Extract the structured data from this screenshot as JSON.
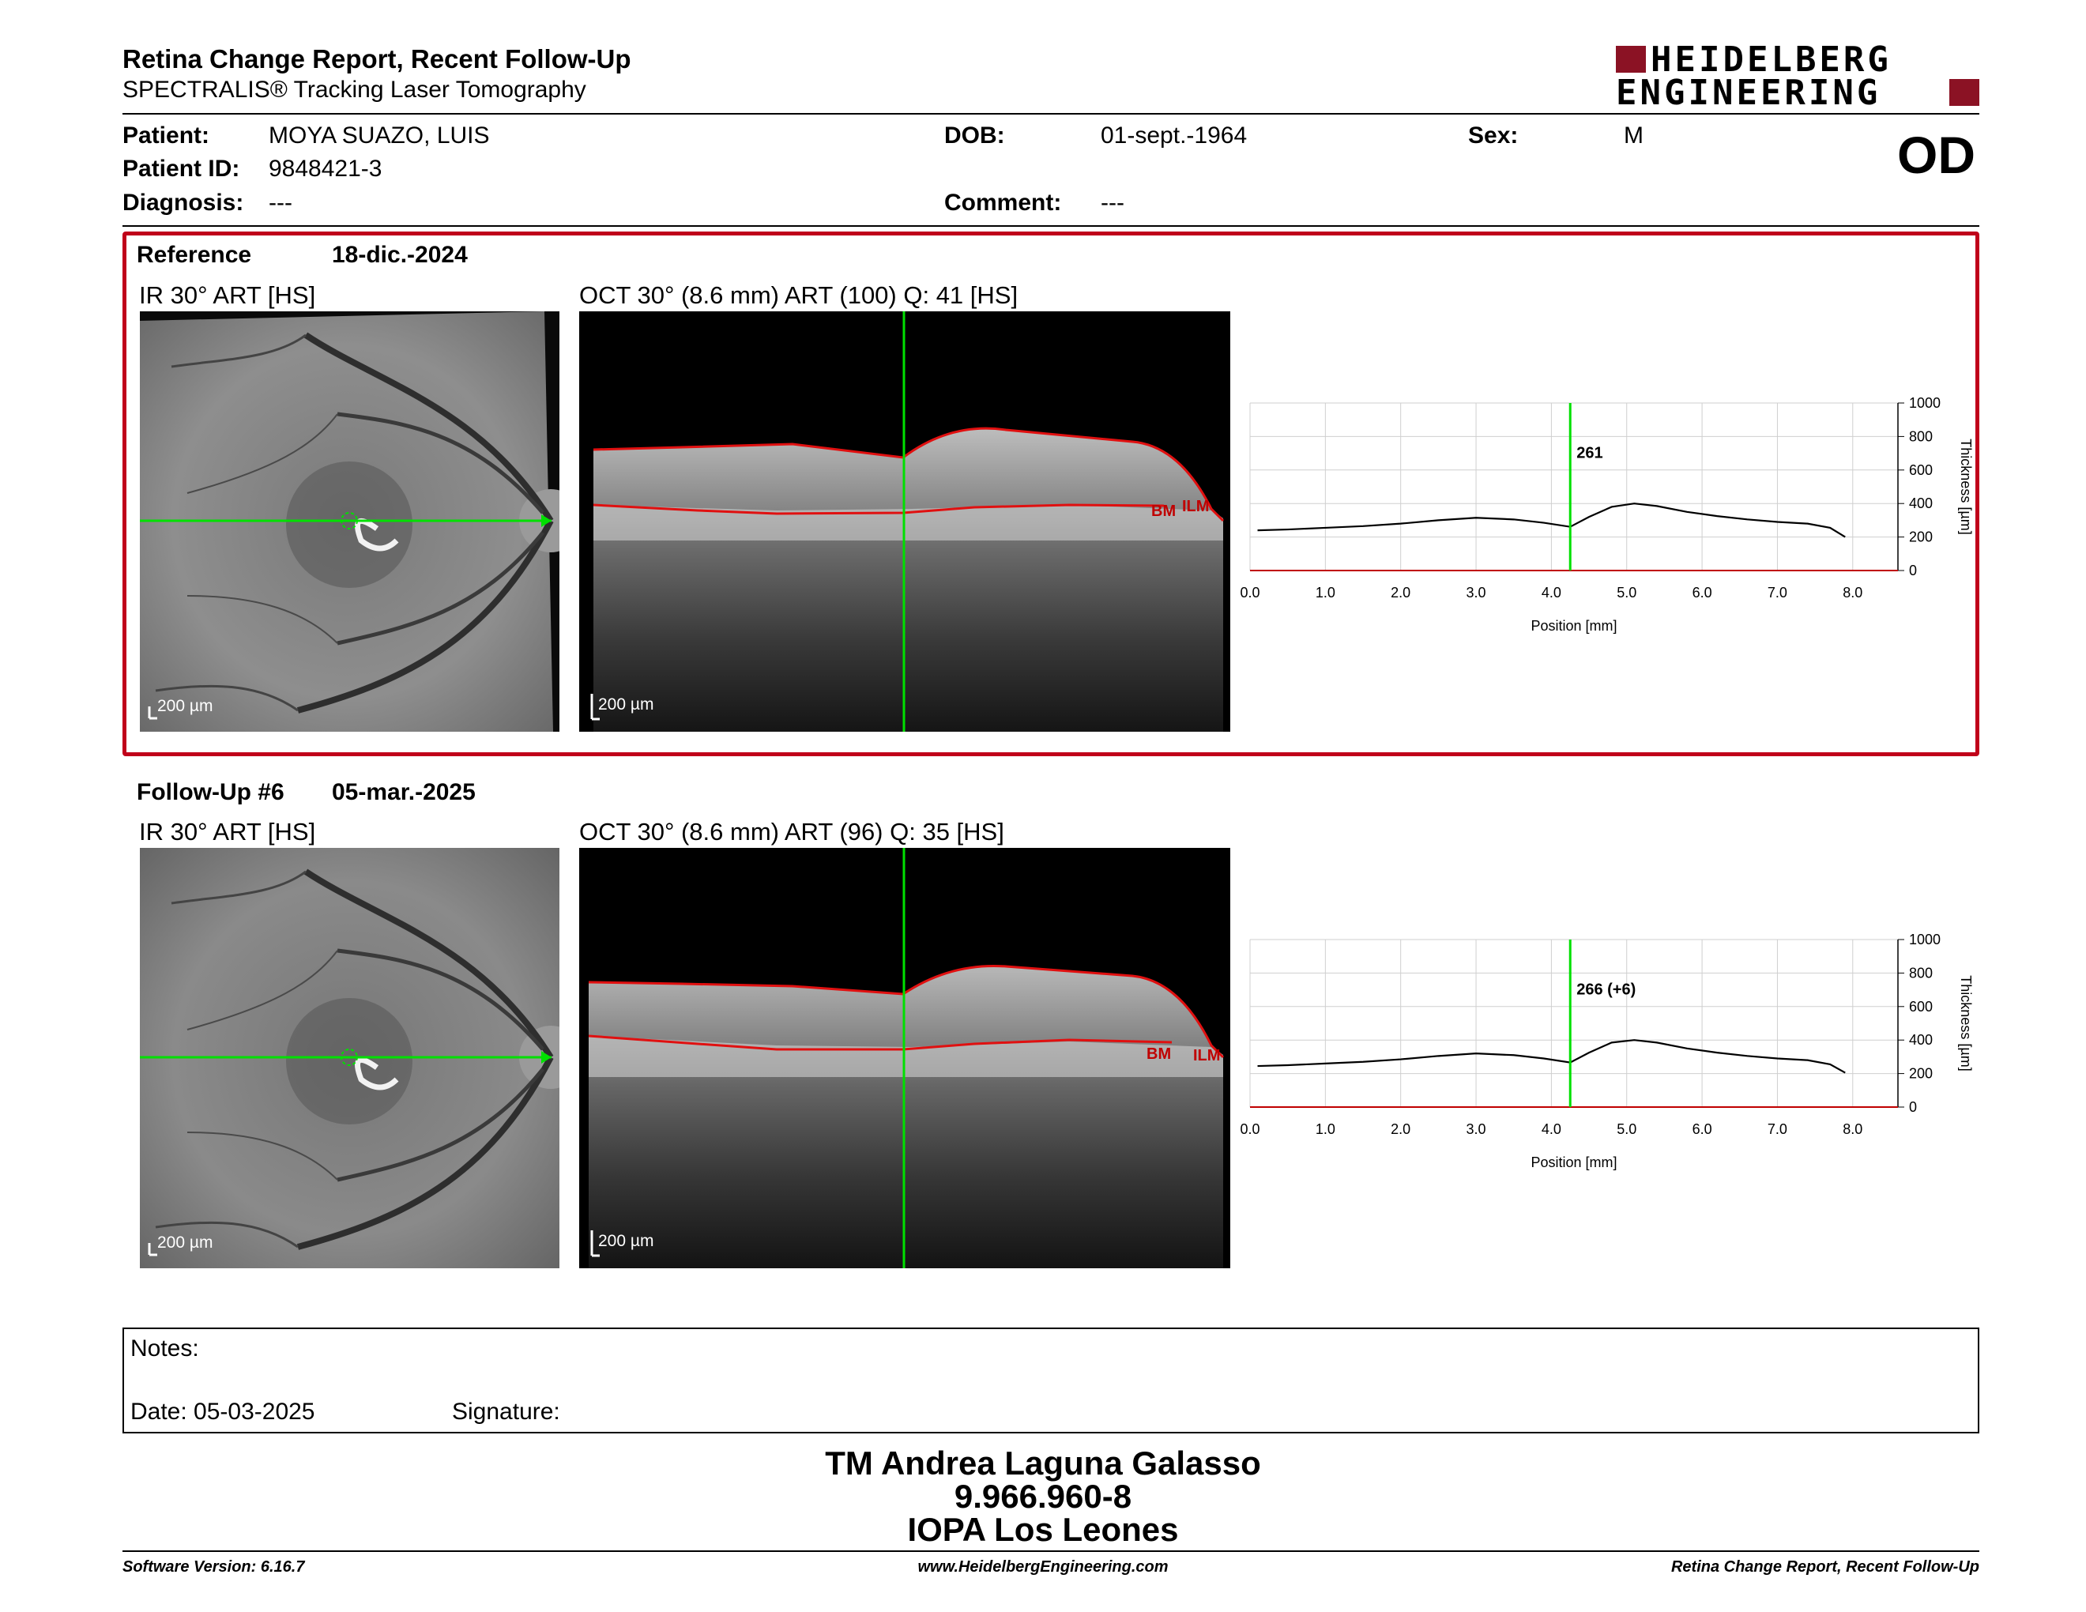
{
  "header": {
    "title": "Retina Change Report, Recent Follow-Up",
    "subtitle": "SPECTRALIS® Tracking Laser Tomography",
    "logo_line1": "HEIDELBERG",
    "logo_line2": "ENGINEERING",
    "eye": "OD"
  },
  "patient": {
    "patient_label": "Patient:",
    "patient_value": "MOYA SUAZO, LUIS",
    "id_label": "Patient ID:",
    "id_value": "9848421-3",
    "diagnosis_label": "Diagnosis:",
    "diagnosis_value": "---",
    "dob_label": "DOB:",
    "dob_value": "01-sept.-1964",
    "comment_label": "Comment:",
    "comment_value": "---",
    "sex_label": "Sex:",
    "sex_value": "M"
  },
  "reference": {
    "title": "Reference",
    "date": "18-dic.-2024",
    "ir_label": "IR 30° ART [HS]",
    "oct_label": "OCT 30° (8.6 mm) ART (100) Q: 41 [HS]",
    "scale_ir": "200 µm",
    "scale_oct": "200 µm",
    "bm_label": "BM",
    "ilm_label": "ILM"
  },
  "followup": {
    "title": "Follow-Up #6",
    "date": "05-mar.-2025",
    "ir_label": "IR 30° ART [HS]",
    "oct_label": "OCT 30° (8.6 mm) ART (96) Q: 35 [HS]",
    "scale_ir": "200 µm",
    "scale_oct": "200 µm",
    "bm_label": "BM",
    "ilm_label": "ILM"
  },
  "chart_data": [
    {
      "type": "line",
      "xlabel": "Position [mm]",
      "ylabel": "Thickness [µm]",
      "xlim": [
        0,
        8.6
      ],
      "ylim": [
        0,
        1000
      ],
      "x_ticks": [
        "0.0",
        "1.0",
        "2.0",
        "3.0",
        "4.0",
        "5.0",
        "6.0",
        "7.0",
        "8.0"
      ],
      "y_ticks": [
        "0",
        "200",
        "400",
        "600",
        "800",
        "1000"
      ],
      "cursor_x": 4.25,
      "cursor_label": "261",
      "series": [
        {
          "x": [
            0.1,
            0.5,
            1.0,
            1.5,
            2.0,
            2.5,
            3.0,
            3.5,
            3.9,
            4.25,
            4.5,
            4.8,
            5.1,
            5.4,
            5.8,
            6.2,
            6.6,
            7.0,
            7.4,
            7.7,
            7.9
          ],
          "y": [
            240,
            245,
            255,
            265,
            280,
            300,
            315,
            305,
            285,
            261,
            320,
            380,
            400,
            385,
            350,
            325,
            305,
            290,
            280,
            255,
            200
          ]
        }
      ]
    },
    {
      "type": "line",
      "xlabel": "Position [mm]",
      "ylabel": "Thickness [µm]",
      "xlim": [
        0,
        8.6
      ],
      "ylim": [
        0,
        1000
      ],
      "x_ticks": [
        "0.0",
        "1.0",
        "2.0",
        "3.0",
        "4.0",
        "5.0",
        "6.0",
        "7.0",
        "8.0"
      ],
      "y_ticks": [
        "0",
        "200",
        "400",
        "600",
        "800",
        "1000"
      ],
      "cursor_x": 4.25,
      "cursor_label": "266 (+6)",
      "series": [
        {
          "x": [
            0.1,
            0.5,
            1.0,
            1.5,
            2.0,
            2.5,
            3.0,
            3.5,
            3.9,
            4.25,
            4.5,
            4.8,
            5.1,
            5.4,
            5.8,
            6.2,
            6.6,
            7.0,
            7.4,
            7.7,
            7.9
          ],
          "y": [
            245,
            250,
            260,
            270,
            285,
            305,
            320,
            310,
            290,
            266,
            325,
            385,
            400,
            385,
            350,
            325,
            305,
            290,
            280,
            255,
            205
          ]
        }
      ]
    }
  ],
  "notes": {
    "notes_label": "Notes:",
    "date_label": "Date: 05-03-2025",
    "signature_label": "Signature:"
  },
  "signature": {
    "name": "TM Andrea Laguna Galasso",
    "id": "9.966.960-8",
    "org": "IOPA Los Leones"
  },
  "footer": {
    "left": "Software Version: 6.16.7",
    "center": "www.HeidelbergEngineering.com",
    "right": "Retina Change Report, Recent Follow-Up"
  },
  "colors": {
    "accent_red": "#c0001a",
    "cursor_green": "#00e000",
    "segmentation_red": "#d01010"
  }
}
